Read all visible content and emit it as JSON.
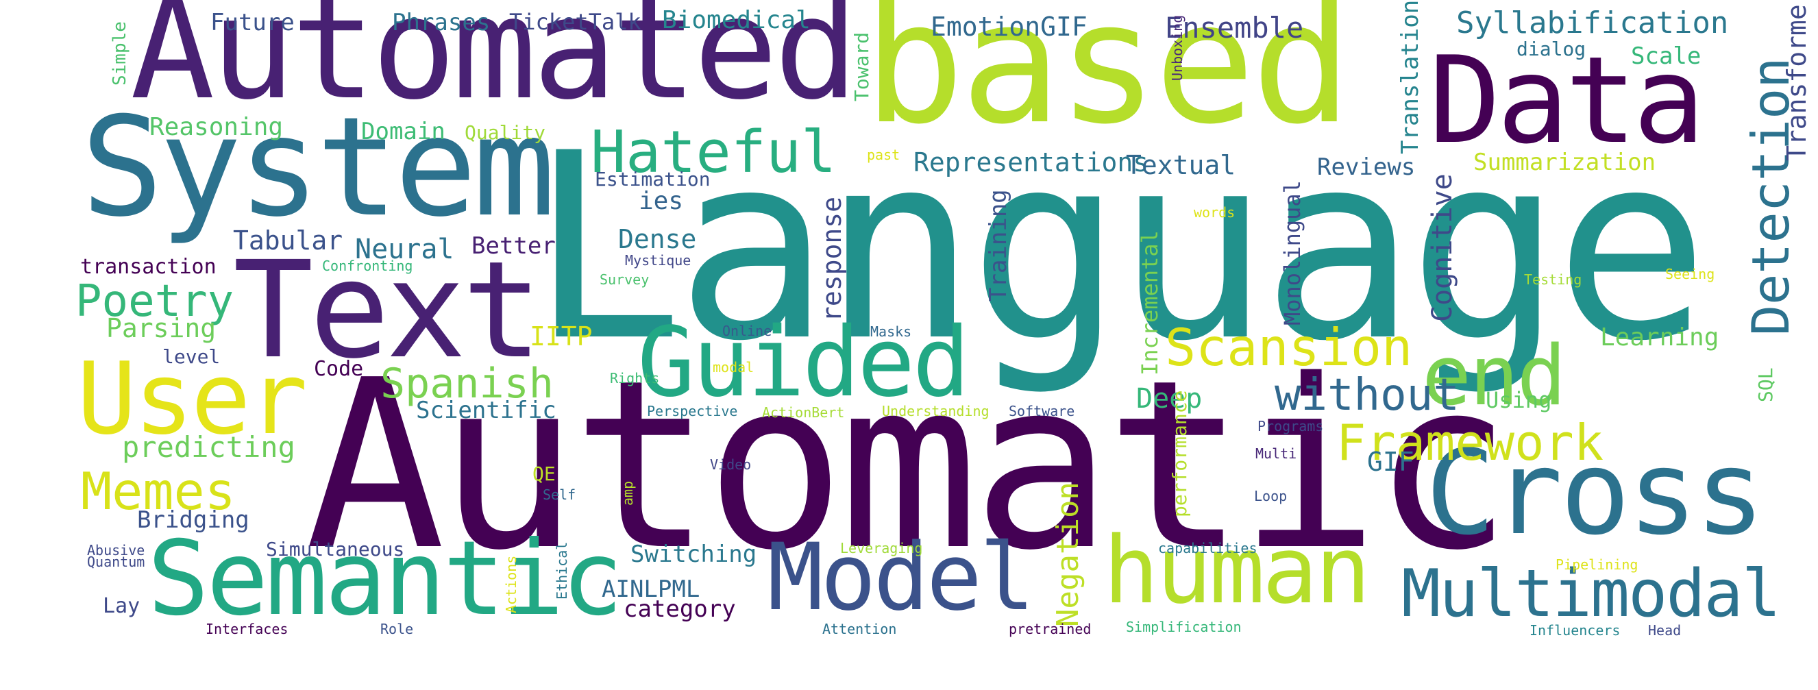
{
  "words": [
    {
      "text": "Language",
      "color": "#21918c"
    },
    {
      "text": "Automatic",
      "color": "#440154"
    },
    {
      "text": "Automated",
      "color": "#482173"
    },
    {
      "text": "based",
      "color": "#b5de2b"
    },
    {
      "text": "System",
      "color": "#2c728e"
    },
    {
      "text": "Data",
      "color": "#440154"
    },
    {
      "text": "Text",
      "color": "#482173"
    },
    {
      "text": "User",
      "color": "#e5e419"
    },
    {
      "text": "Guided",
      "color": "#22a884"
    },
    {
      "text": "Cross",
      "color": "#2c728e"
    },
    {
      "text": "Semantic",
      "color": "#22a884"
    },
    {
      "text": "Model",
      "color": "#3b528b"
    },
    {
      "text": "human",
      "color": "#b5de2b"
    },
    {
      "text": "Multimodal",
      "color": "#2c728e"
    },
    {
      "text": "end",
      "color": "#7ad151"
    },
    {
      "text": "Hateful",
      "color": "#28ae80"
    },
    {
      "text": "Detection",
      "color": "#2c728e"
    },
    {
      "text": "Scansion",
      "color": "#dde318"
    },
    {
      "text": "Framework",
      "color": "#d0e11c"
    },
    {
      "text": "Memes",
      "color": "#d8e219"
    },
    {
      "text": "Poetry",
      "color": "#35b779"
    },
    {
      "text": "Spanish",
      "color": "#7ad151"
    },
    {
      "text": "without",
      "color": "#31688e"
    },
    {
      "text": "Negation",
      "color": "#bddf26"
    },
    {
      "text": "Cognitive",
      "color": "#3e4989"
    },
    {
      "text": "Transformer",
      "color": "#3e4989"
    },
    {
      "text": "Syllabification",
      "color": "#2a788e"
    },
    {
      "text": "Ensemble",
      "color": "#414487"
    },
    {
      "text": "EmotionGIF",
      "color": "#31688e"
    },
    {
      "text": "Biomedical",
      "color": "#25858e"
    },
    {
      "text": "TicketTalk",
      "color": "#3e4989"
    },
    {
      "text": "Phrases",
      "color": "#2c728e"
    },
    {
      "text": "Future",
      "color": "#3b528b"
    },
    {
      "text": "Simple",
      "color": "#4ac16d"
    },
    {
      "text": "Reasoning",
      "color": "#54c568"
    },
    {
      "text": "Domain",
      "color": "#3dbc74"
    },
    {
      "text": "Quality",
      "color": "#a0da39"
    },
    {
      "text": "Toward",
      "color": "#4ac16d"
    },
    {
      "text": "Unboxing",
      "color": "#482878"
    },
    {
      "text": "Translation",
      "color": "#25848e"
    },
    {
      "text": "dialog",
      "color": "#2c728e"
    },
    {
      "text": "Scale",
      "color": "#35b779"
    },
    {
      "text": "Representations",
      "color": "#2a788e"
    },
    {
      "text": "Textual",
      "color": "#31688e"
    },
    {
      "text": "Reviews",
      "color": "#33638d"
    },
    {
      "text": "Summarization",
      "color": "#c2df23"
    },
    {
      "text": "past",
      "color": "#dde318"
    },
    {
      "text": "Estimation",
      "color": "#3b528b"
    },
    {
      "text": "ies",
      "color": "#33638d"
    },
    {
      "text": "response",
      "color": "#3e4989"
    },
    {
      "text": "Training",
      "color": "#3b528b"
    },
    {
      "text": "Incremental",
      "color": "#7ad151"
    },
    {
      "text": "Monolingual",
      "color": "#3e4989"
    },
    {
      "text": "words",
      "color": "#dde318"
    },
    {
      "text": "Dense",
      "color": "#2a788e"
    },
    {
      "text": "Mystique",
      "color": "#404688"
    },
    {
      "text": "Tabular",
      "color": "#3b528b"
    },
    {
      "text": "Neural",
      "color": "#2c728e"
    },
    {
      "text": "Better",
      "color": "#482173"
    },
    {
      "text": "transaction",
      "color": "#440154"
    },
    {
      "text": "Confronting",
      "color": "#35b779"
    },
    {
      "text": "Survey",
      "color": "#4ac16d"
    },
    {
      "text": "Testing",
      "color": "#a5db36"
    },
    {
      "text": "Seeing",
      "color": "#dde318"
    },
    {
      "text": "Parsing",
      "color": "#6ccd5a"
    },
    {
      "text": "IITP",
      "color": "#d8e219"
    },
    {
      "text": "Online",
      "color": "#38588c"
    },
    {
      "text": "Masks",
      "color": "#31688e"
    },
    {
      "text": "Learning",
      "color": "#6ccd5a"
    },
    {
      "text": "SQL",
      "color": "#5ec962"
    },
    {
      "text": "level",
      "color": "#3e4989"
    },
    {
      "text": "Code",
      "color": "#440154"
    },
    {
      "text": "modal",
      "color": "#dde318"
    },
    {
      "text": "Rights",
      "color": "#3dbc74"
    },
    {
      "text": "Scientific",
      "color": "#2c728e"
    },
    {
      "text": "Deep",
      "color": "#35b779"
    },
    {
      "text": "Using",
      "color": "#5ec962"
    },
    {
      "text": "predicting",
      "color": "#6ccd5a"
    },
    {
      "text": "Perspective",
      "color": "#2a788e"
    },
    {
      "text": "ActionBert",
      "color": "#a5db36"
    },
    {
      "text": "Understanding",
      "color": "#b5de2b"
    },
    {
      "text": "Software",
      "color": "#3b528b"
    },
    {
      "text": "Programs",
      "color": "#3e4989"
    },
    {
      "text": "performance",
      "color": "#b5de2b"
    },
    {
      "text": "QE",
      "color": "#bddf26"
    },
    {
      "text": "Video",
      "color": "#404688"
    },
    {
      "text": "Multi",
      "color": "#482878"
    },
    {
      "text": "GIF",
      "color": "#2c728e"
    },
    {
      "text": "Self",
      "color": "#31688e"
    },
    {
      "text": "amp",
      "color": "#b5de2b"
    },
    {
      "text": "Loop",
      "color": "#3b528b"
    },
    {
      "text": "Bridging",
      "color": "#3b528b"
    },
    {
      "text": "Simultaneous",
      "color": "#3e4989"
    },
    {
      "text": "Abusive",
      "color": "#3e4989"
    },
    {
      "text": "Quantum",
      "color": "#3e4989"
    },
    {
      "text": "Actions",
      "color": "#dde318"
    },
    {
      "text": "Ethical",
      "color": "#2a788e"
    },
    {
      "text": "Switching",
      "color": "#2a788e"
    },
    {
      "text": "Leveraging",
      "color": "#a0da39"
    },
    {
      "text": "capabilities",
      "color": "#2a788e"
    },
    {
      "text": "Pipelining",
      "color": "#dde318"
    },
    {
      "text": "AINLPML",
      "color": "#31688e"
    },
    {
      "text": "category",
      "color": "#440154"
    },
    {
      "text": "Lay",
      "color": "#3e4989"
    },
    {
      "text": "Interfaces",
      "color": "#440154"
    },
    {
      "text": "Role",
      "color": "#3b528b"
    },
    {
      "text": "Attention",
      "color": "#2c728e"
    },
    {
      "text": "pretrained",
      "color": "#440154"
    },
    {
      "text": "Simplification",
      "color": "#35b779"
    },
    {
      "text": "Influencers",
      "color": "#25858e"
    },
    {
      "text": "Head",
      "color": "#3e4989"
    }
  ]
}
